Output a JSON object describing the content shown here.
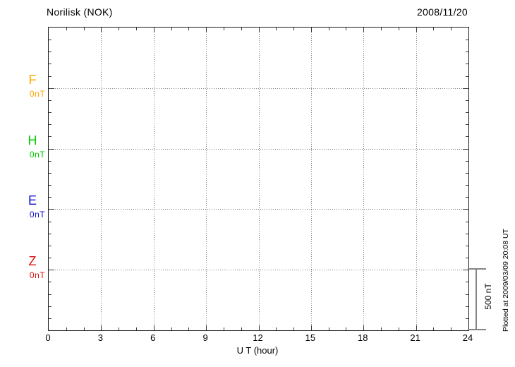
{
  "header": {
    "station_title": "Norilisk (NOK)",
    "date": "2008/11/20"
  },
  "plot": {
    "x_axis": {
      "label": "U T (hour)",
      "tick_labels": [
        "0",
        "3",
        "6",
        "9",
        "12",
        "15",
        "18",
        "21",
        "24"
      ]
    },
    "channels": [
      {
        "label": "F",
        "baseline_value": "0nT",
        "color": "#FFA500"
      },
      {
        "label": "H",
        "baseline_value": "0nT",
        "color": "#00CC00"
      },
      {
        "label": "E",
        "baseline_value": "0nT",
        "color": "#1111CC"
      },
      {
        "label": "Z",
        "baseline_value": "0nT",
        "color": "#DD1111"
      }
    ],
    "scale_bar_label": "500 nT"
  },
  "footer": {
    "plotted_note": "Plotted at 2009/03/09 20:08 UT"
  },
  "chart_data": {
    "type": "line",
    "title": "Norilisk (NOK)",
    "subtitle": "2008/11/20",
    "xlabel": "U T (hour)",
    "xlim": [
      0,
      24
    ],
    "x_ticks": [
      0,
      3,
      6,
      9,
      12,
      15,
      18,
      21,
      24
    ],
    "x_minor_tick_interval_hours": 1,
    "grid": "dotted vertical lines every 3 hours; dotted horizontal line at each channel baseline",
    "legend_position": "left margin, one colored label per channel",
    "series": [
      {
        "name": "F",
        "color": "#FFA500",
        "baseline_label": "0nT",
        "values": []
      },
      {
        "name": "H",
        "color": "#00CC00",
        "baseline_label": "0nT",
        "values": []
      },
      {
        "name": "E",
        "color": "#1111CC",
        "baseline_label": "0nT",
        "values": []
      },
      {
        "name": "Z",
        "color": "#DD1111",
        "baseline_label": "0nT",
        "values": []
      }
    ],
    "y_scale_bar": {
      "label": "500 nT",
      "span_nT": 500,
      "minor_tick_nT": 100
    },
    "annotation": "Plotted at 2009/03/09 20:08 UT",
    "note": "No data traces are drawn; all four channels show empty baselines at 0 nT"
  }
}
